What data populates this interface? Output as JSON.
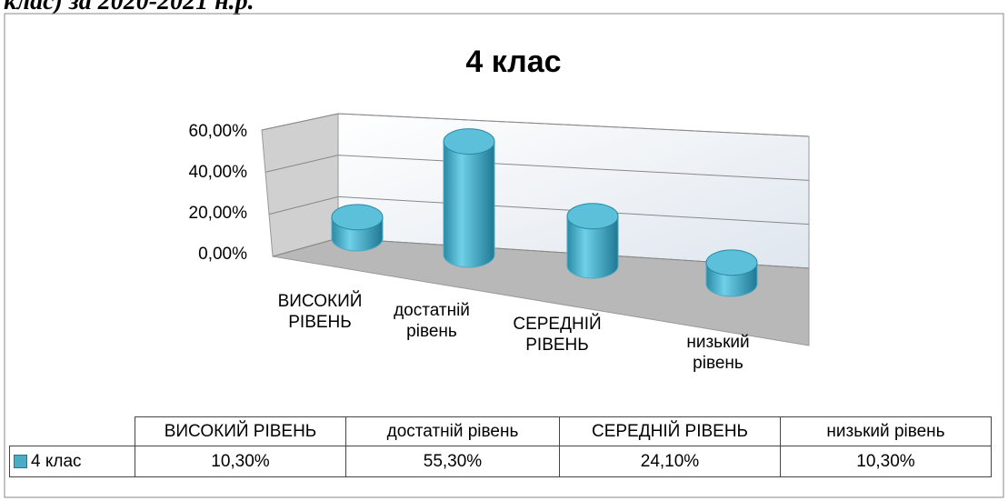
{
  "header_text": "клас) за 2020-2021 н.р.",
  "chart_data": {
    "type": "bar3d",
    "title": "4 клас",
    "categories": [
      "ВИСОКИЙ РІВЕНЬ",
      "достатній рівень",
      "СЕРЕДНІЙ РІВЕНЬ",
      "низький рівень"
    ],
    "series": [
      {
        "name": "4 клас",
        "color": "#4bacc6",
        "values": [
          10.3,
          55.3,
          24.1,
          10.3
        ],
        "value_labels": [
          "10,30%",
          "55,30%",
          "24,10%",
          "10,30%"
        ]
      }
    ],
    "ylim": [
      0,
      60
    ],
    "yticks": [
      {
        "value": 0,
        "label": "0,00%"
      },
      {
        "value": 20,
        "label": "20,00%"
      },
      {
        "value": 40,
        "label": "40,00%"
      },
      {
        "value": 60,
        "label": "60,00%"
      }
    ],
    "grid": true
  }
}
